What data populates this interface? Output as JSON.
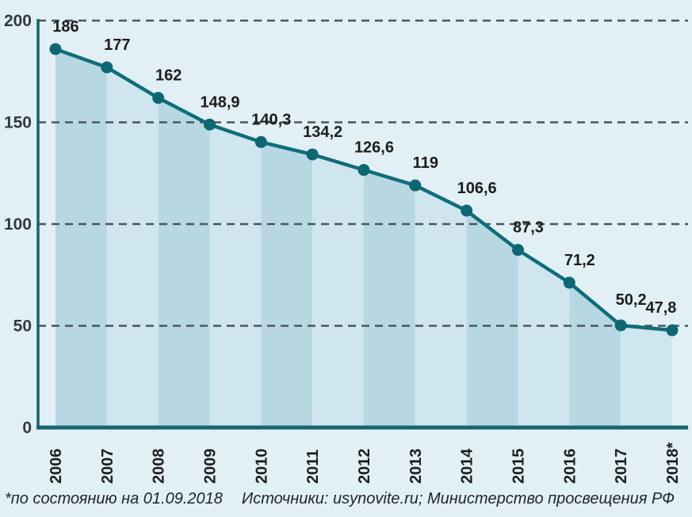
{
  "chart_data": {
    "type": "line",
    "area": true,
    "categories": [
      "2006",
      "2007",
      "2008",
      "2009",
      "2010",
      "2011",
      "2012",
      "2013",
      "2014",
      "2015",
      "2016",
      "2017",
      "2018*"
    ],
    "values": [
      186,
      177,
      162,
      148.9,
      140.3,
      134.2,
      126.6,
      119,
      106.6,
      87.3,
      71.2,
      50.2,
      47.8
    ],
    "value_labels": [
      "186",
      "177",
      "162",
      "148,9",
      "140,3",
      "134,2",
      "126,6",
      "119",
      "106,6",
      "87,3",
      "71,2",
      "50,2",
      "47,8"
    ],
    "yticks": [
      0,
      50,
      100,
      150,
      200
    ],
    "ytick_labels": [
      "0",
      "50",
      "100",
      "150",
      "200"
    ],
    "ylim": [
      0,
      200
    ],
    "grid": "dashed-horizontal",
    "legend": "none",
    "title": "",
    "xlabel": "",
    "ylabel": "",
    "colors": {
      "background": "#e2eff5",
      "stripe_dark": "#b7d8e3",
      "stripe_light": "#cfe6ee",
      "line": "#0e6e79",
      "point": "#0d6773",
      "axis": "#15656f",
      "gridline": "#4a565b",
      "label_text": "#1d1d1b",
      "tick_text": "#323a3e"
    }
  },
  "footer": {
    "footnote": "*по состоянию на 01.09.2018",
    "sources": "Источники: usynovite.ru; Министерство просвещения РФ"
  }
}
